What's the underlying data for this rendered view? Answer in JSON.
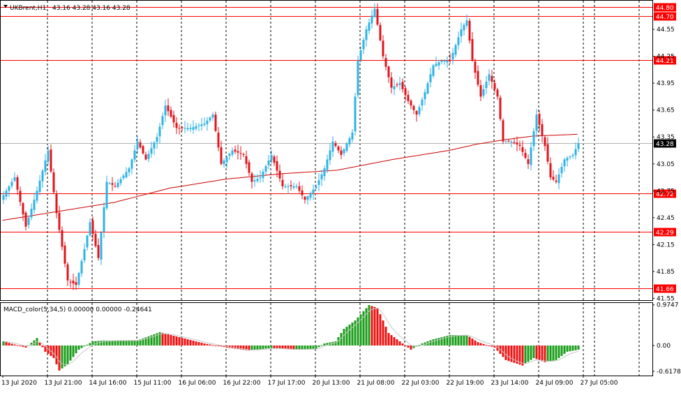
{
  "header": {
    "symbol_label": "UKBrent,H1",
    "ohlc": "43.16 43.28 43.16 43.28"
  },
  "macd": {
    "label": "MACD_color(5,34,5) 0.00000 0.00000 -0.24641",
    "ticks": [
      "0.9747",
      "0.00",
      "-0.61786"
    ],
    "tick_values": [
      0.9747,
      0.0,
      -0.61786
    ],
    "ylim": [
      -0.72,
      1.02
    ]
  },
  "chart_data": {
    "type": "candlestick",
    "timeframe": "H1",
    "ylim": [
      41.53,
      44.87
    ],
    "y_ticks": [
      44.55,
      44.25,
      43.95,
      43.65,
      43.35,
      43.05,
      42.75,
      42.45,
      42.15,
      41.85,
      41.55
    ],
    "y_tick_labels": [
      "44.55",
      "44.25",
      "43.95",
      "43.65",
      "43.35",
      "43.05",
      "42.75",
      "42.45",
      "42.15",
      "41.85",
      "41.55"
    ],
    "current_price": 43.28,
    "current_price_label": "43.28",
    "levels": [
      {
        "value": 44.8,
        "label": "44.80"
      },
      {
        "value": 44.7,
        "label": "44.70"
      },
      {
        "value": 44.21,
        "label": "44.21"
      },
      {
        "value": 42.72,
        "label": "42.72"
      },
      {
        "value": 42.29,
        "label": "42.29"
      },
      {
        "value": 41.66,
        "label": "41.66"
      }
    ],
    "x_labels": [
      "13 Jul 2020",
      "13 Jul 21:00",
      "14 Jul 16:00",
      "15 Jul 11:00",
      "16 Jul 06:00",
      "16 Jul 22:00",
      "17 Jul 17:00",
      "20 Jul 13:00",
      "21 Jul 08:00",
      "22 Jul 03:00",
      "22 Jul 19:00",
      "23 Jul 14:00",
      "24 Jul 09:00",
      "27 Jul 05:00"
    ],
    "waypoints": [
      [
        0,
        42.7
      ],
      [
        4,
        42.9
      ],
      [
        8,
        42.35
      ],
      [
        12,
        42.75
      ],
      [
        16,
        43.2
      ],
      [
        19,
        42.5
      ],
      [
        23,
        41.75
      ],
      [
        26,
        41.7
      ],
      [
        29,
        42.1
      ],
      [
        31,
        42.4
      ],
      [
        34,
        42.0
      ],
      [
        37,
        42.85
      ],
      [
        40,
        42.8
      ],
      [
        45,
        43.0
      ],
      [
        48,
        43.3
      ],
      [
        51,
        43.1
      ],
      [
        55,
        43.35
      ],
      [
        58,
        43.7
      ],
      [
        62,
        43.45
      ],
      [
        67,
        43.45
      ],
      [
        72,
        43.5
      ],
      [
        75,
        43.6
      ],
      [
        78,
        43.05
      ],
      [
        82,
        43.2
      ],
      [
        86,
        43.15
      ],
      [
        89,
        42.85
      ],
      [
        92,
        42.9
      ],
      [
        96,
        43.15
      ],
      [
        100,
        42.8
      ],
      [
        105,
        42.8
      ],
      [
        108,
        42.65
      ],
      [
        112,
        42.8
      ],
      [
        115,
        43.0
      ],
      [
        118,
        43.3
      ],
      [
        121,
        43.15
      ],
      [
        125,
        43.4
      ],
      [
        127,
        44.2
      ],
      [
        130,
        44.55
      ],
      [
        133,
        44.78
      ],
      [
        136,
        44.25
      ],
      [
        139,
        43.9
      ],
      [
        142,
        43.95
      ],
      [
        145,
        43.75
      ],
      [
        148,
        43.6
      ],
      [
        151,
        43.85
      ],
      [
        154,
        44.15
      ],
      [
        157,
        44.2
      ],
      [
        160,
        44.2
      ],
      [
        164,
        44.55
      ],
      [
        166,
        44.65
      ],
      [
        168,
        44.2
      ],
      [
        171,
        43.8
      ],
      [
        174,
        44.05
      ],
      [
        177,
        43.8
      ],
      [
        179,
        43.3
      ],
      [
        182,
        43.3
      ],
      [
        185,
        43.25
      ],
      [
        188,
        43.05
      ],
      [
        191,
        43.6
      ],
      [
        194,
        43.25
      ],
      [
        196,
        42.9
      ],
      [
        198,
        42.85
      ],
      [
        201,
        43.1
      ],
      [
        204,
        43.15
      ],
      [
        206,
        43.28
      ]
    ],
    "ema": [
      [
        0,
        42.42
      ],
      [
        20,
        42.52
      ],
      [
        40,
        42.62
      ],
      [
        60,
        42.78
      ],
      [
        80,
        42.88
      ],
      [
        100,
        42.94
      ],
      [
        120,
        42.98
      ],
      [
        140,
        43.1
      ],
      [
        160,
        43.2
      ],
      [
        170,
        43.27
      ],
      [
        180,
        43.32
      ],
      [
        190,
        43.36
      ],
      [
        206,
        43.38
      ]
    ],
    "macd_waypoints": [
      [
        0,
        0.1
      ],
      [
        8,
        -0.05
      ],
      [
        12,
        0.18
      ],
      [
        15,
        -0.15
      ],
      [
        18,
        -0.3
      ],
      [
        20,
        -0.6
      ],
      [
        23,
        -0.45
      ],
      [
        27,
        -0.1
      ],
      [
        32,
        0.1
      ],
      [
        36,
        0.12
      ],
      [
        48,
        0.12
      ],
      [
        56,
        0.32
      ],
      [
        66,
        0.15
      ],
      [
        72,
        0.05
      ],
      [
        80,
        -0.05
      ],
      [
        88,
        -0.12
      ],
      [
        96,
        -0.06
      ],
      [
        104,
        -0.1
      ],
      [
        112,
        -0.08
      ],
      [
        115,
        0.05
      ],
      [
        119,
        0.1
      ],
      [
        122,
        0.4
      ],
      [
        126,
        0.6
      ],
      [
        131,
        0.97
      ],
      [
        134,
        0.9
      ],
      [
        138,
        0.3
      ],
      [
        142,
        0.1
      ],
      [
        146,
        -0.1
      ],
      [
        150,
        0.05
      ],
      [
        154,
        0.15
      ],
      [
        160,
        0.25
      ],
      [
        166,
        0.25
      ],
      [
        170,
        0.08
      ],
      [
        176,
        -0.05
      ],
      [
        180,
        -0.35
      ],
      [
        186,
        -0.48
      ],
      [
        190,
        -0.3
      ],
      [
        194,
        -0.4
      ],
      [
        198,
        -0.35
      ],
      [
        202,
        -0.15
      ],
      [
        206,
        -0.1
      ]
    ]
  }
}
